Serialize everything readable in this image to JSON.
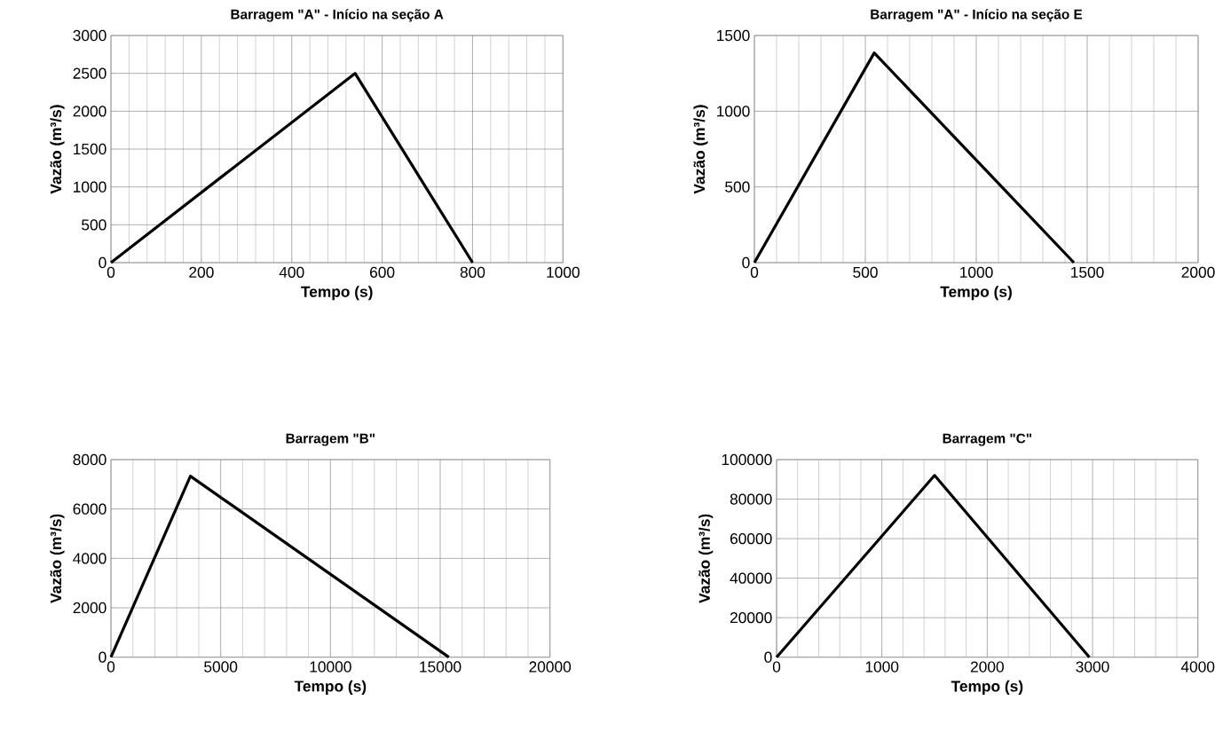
{
  "chart_data": [
    {
      "type": "line",
      "title": "Barragem \"A\" - Início na seção A",
      "xlabel": "Tempo (s)",
      "ylabel": "Vazão (m³/s)",
      "x": [
        0,
        540,
        800
      ],
      "values": [
        0,
        2500,
        0
      ],
      "color": "#000000",
      "xlim": [
        0,
        1000
      ],
      "ylim": [
        0,
        3000
      ],
      "xticks": [
        0,
        200,
        400,
        600,
        800,
        1000
      ],
      "yticks": [
        0,
        500,
        1000,
        1500,
        2000,
        2500,
        3000
      ],
      "grid": true,
      "line_style": "solid"
    },
    {
      "type": "line",
      "title": "Barragem \"A\" - Início na seção E",
      "xlabel": "Tempo (s)",
      "ylabel": "Vazão (m³/s)",
      "x": [
        0,
        540,
        1440
      ],
      "values": [
        0,
        1385,
        0
      ],
      "color": "#000000",
      "xlim": [
        0,
        2000
      ],
      "ylim": [
        0,
        1500
      ],
      "xticks": [
        0,
        500,
        1000,
        1500,
        2000
      ],
      "yticks": [
        0,
        500,
        1000,
        1500
      ],
      "grid": true,
      "line_style": "solid"
    },
    {
      "type": "line",
      "title": "Barragem \"B\"",
      "xlabel": "Tempo (s)",
      "ylabel": "Vazão (m³/s)",
      "x": [
        0,
        3620,
        15390
      ],
      "values": [
        0,
        7330,
        0
      ],
      "color": "#000000",
      "xlim": [
        0,
        20000
      ],
      "ylim": [
        0,
        8000
      ],
      "xticks": [
        0,
        5000,
        10000,
        15000,
        20000
      ],
      "yticks": [
        0,
        2000,
        4000,
        6000,
        8000
      ],
      "grid": true,
      "line_style": "solid"
    },
    {
      "type": "line",
      "title": "Barragem \"C\"",
      "xlabel": "Tempo (s)",
      "ylabel": "Vazão (m³/s)",
      "x": [
        0,
        1500,
        2970
      ],
      "values": [
        0,
        92000,
        0
      ],
      "color": "#000000",
      "xlim": [
        0,
        4000
      ],
      "ylim": [
        0,
        100000
      ],
      "xticks": [
        0,
        1000,
        2000,
        3000,
        4000
      ],
      "yticks": [
        0,
        20000,
        40000,
        60000,
        80000,
        100000
      ],
      "grid": true,
      "line_style": "solid"
    }
  ]
}
